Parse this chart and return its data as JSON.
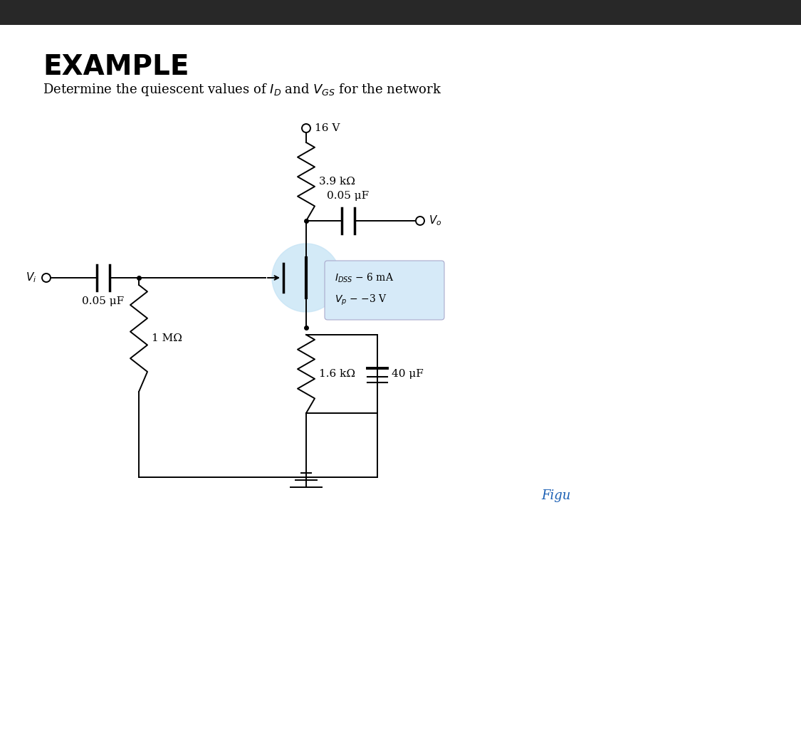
{
  "title": "EXAMPLE",
  "subtitle": "Determine the quiescent values of $I_D$ and $V_{GS}$ for the network",
  "bg_color": "#ffffff",
  "title_color": "#000000",
  "subtitle_color": "#000000",
  "fig_label_color": "#1a5fb4",
  "fig_label": "Figu",
  "vdd_label": "16 V",
  "rd_label": "3.9 kΩ",
  "cs_label": "0.05 μF",
  "vout_label": "$V_o$",
  "cg_label": "0.05 μF",
  "vi_label": "$V_i$",
  "rg_label": "1 MΩ",
  "rs_label": "1.6 kΩ",
  "css_label": "40 μF",
  "idss_label": "$I_{DSS}$ − 6 mA",
  "vp_label": "$V_p$ − −3 V",
  "mosfet_circle_color": "#c5e3f5",
  "mosfet_box_color": "#d6eaf8",
  "header_bg": "#282828"
}
